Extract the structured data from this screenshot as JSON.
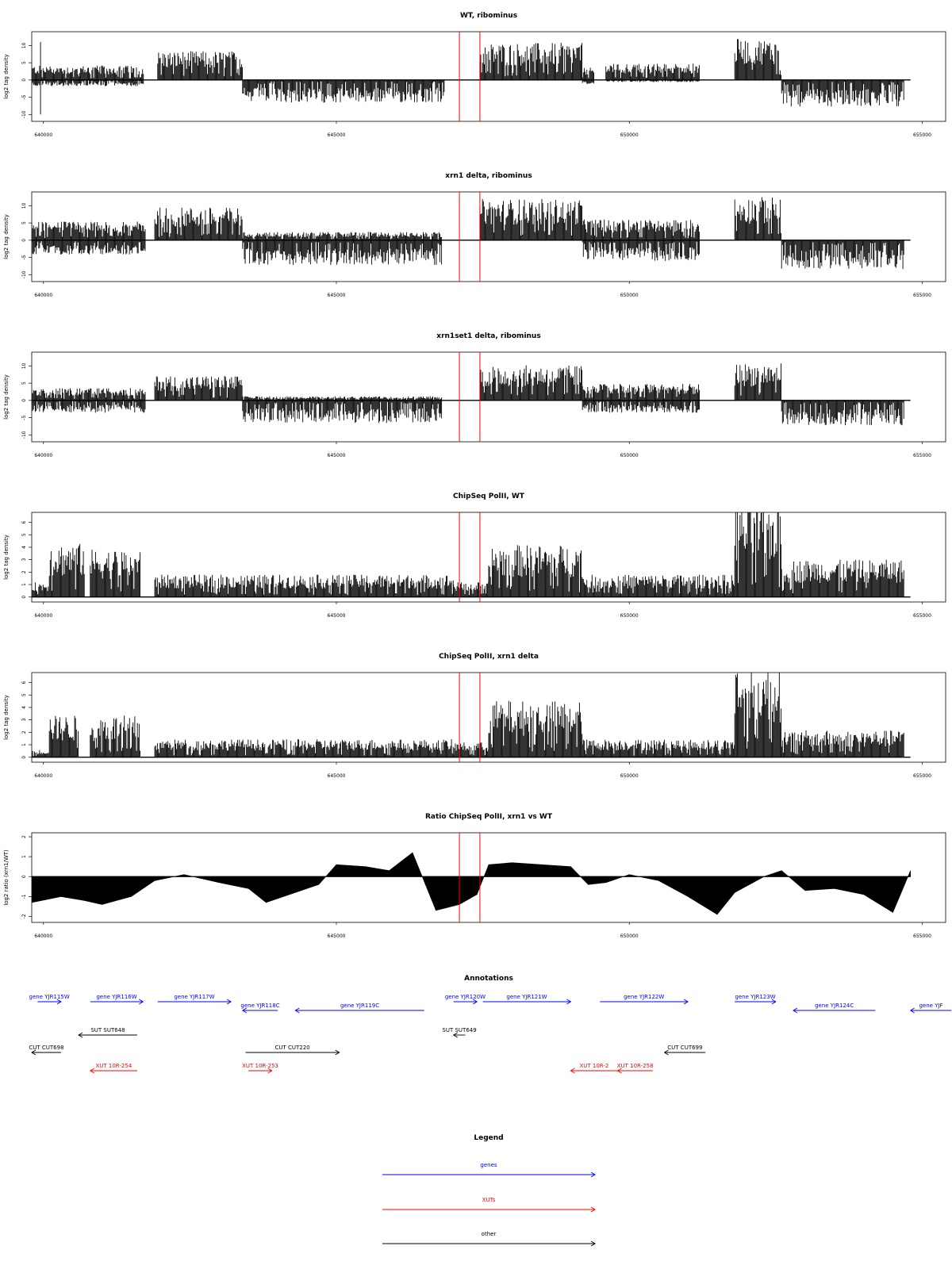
{
  "colors": {
    "gene": "#0000ff",
    "xut": "#ff0000",
    "other": "#000000",
    "marker": "#ff0000",
    "signal": "#000000"
  },
  "xaxis": {
    "ticks": [
      640000,
      645000,
      650000,
      655000
    ],
    "range": [
      639800,
      655400
    ]
  },
  "markers": [
    647100,
    647450
  ],
  "chart_data": [
    {
      "type": "bar",
      "title": "WT, ribominus",
      "ylabel": "log2 tag density",
      "ylim": [
        -12,
        14
      ],
      "yticks": [
        "10",
        "5",
        "0",
        "-5",
        "-10"
      ],
      "x_range": [
        639800,
        654800
      ],
      "blocks": [
        {
          "s": 639800,
          "e": 641720,
          "p": 3.5,
          "n": -1.5
        },
        {
          "s": 641950,
          "e": 643400,
          "p": 7,
          "n": 0
        },
        {
          "s": 643400,
          "e": 646850,
          "p": 0,
          "n": -5.5
        },
        {
          "s": 647450,
          "e": 649200,
          "p": 9,
          "n": 0
        },
        {
          "s": 649200,
          "e": 649400,
          "p": 3,
          "n": -1
        },
        {
          "s": 649600,
          "e": 651200,
          "p": 4,
          "n": -0.5
        },
        {
          "s": 651800,
          "e": 652600,
          "p": 10,
          "n": 0
        },
        {
          "s": 652600,
          "e": 654700,
          "p": 0,
          "n": -6.5
        }
      ],
      "spikes": [
        {
          "x": 639950,
          "top": 11,
          "bot": -10
        }
      ]
    },
    {
      "type": "bar",
      "title": "xrn1 delta, ribominus",
      "ylabel": "log2 tag density",
      "ylim": [
        -12,
        14
      ],
      "yticks": [
        "10",
        "5",
        "0",
        "-5",
        "-10"
      ],
      "x_range": [
        639800,
        654800
      ],
      "blocks": [
        {
          "s": 639800,
          "e": 641750,
          "p": 4.5,
          "n": -3.5
        },
        {
          "s": 641900,
          "e": 643400,
          "p": 8,
          "n": 0
        },
        {
          "s": 643400,
          "e": 646800,
          "p": 2,
          "n": -6
        },
        {
          "s": 647450,
          "e": 649200,
          "p": 10,
          "n": 0
        },
        {
          "s": 649200,
          "e": 651200,
          "p": 5,
          "n": -5
        },
        {
          "s": 651800,
          "e": 652600,
          "p": 10.5,
          "n": 0
        },
        {
          "s": 652600,
          "e": 654700,
          "p": 0,
          "n": -7
        }
      ],
      "spikes": []
    },
    {
      "type": "bar",
      "title": "xrn1set1 delta, ribominus",
      "ylabel": "log2 tag density",
      "ylim": [
        -12,
        14
      ],
      "yticks": [
        "10",
        "5",
        "0",
        "-5",
        "-10"
      ],
      "x_range": [
        639800,
        654800
      ],
      "blocks": [
        {
          "s": 639800,
          "e": 641750,
          "p": 3,
          "n": -3
        },
        {
          "s": 641900,
          "e": 643400,
          "p": 6,
          "n": 0
        },
        {
          "s": 643400,
          "e": 646800,
          "p": 1,
          "n": -5.5
        },
        {
          "s": 647450,
          "e": 649200,
          "p": 8.5,
          "n": 0
        },
        {
          "s": 649200,
          "e": 651200,
          "p": 4,
          "n": -3
        },
        {
          "s": 651800,
          "e": 652600,
          "p": 9,
          "n": 0
        },
        {
          "s": 652600,
          "e": 654700,
          "p": 0,
          "n": -6
        }
      ],
      "spikes": []
    },
    {
      "type": "bar",
      "title": "ChipSeq PolII, WT",
      "ylabel": "log2 tag density",
      "ylim": [
        -0.4,
        6.8
      ],
      "yticks": [
        "6",
        "5",
        "4",
        "3",
        "2",
        "1",
        "0"
      ],
      "x_range": [
        639800,
        654800
      ],
      "blocks": [
        {
          "s": 639800,
          "e": 640100,
          "p": 1,
          "n": 0
        },
        {
          "s": 640100,
          "e": 640700,
          "p": 3.6,
          "n": 0
        },
        {
          "s": 640800,
          "e": 641650,
          "p": 3.2,
          "n": 0
        },
        {
          "s": 641900,
          "e": 647000,
          "p": 1.5,
          "n": 0
        },
        {
          "s": 647000,
          "e": 647600,
          "p": 1,
          "n": 0
        },
        {
          "s": 647600,
          "e": 649200,
          "p": 3.5,
          "n": 0
        },
        {
          "s": 649200,
          "e": 651800,
          "p": 1.5,
          "n": 0
        },
        {
          "s": 651800,
          "e": 652600,
          "p": 6.2,
          "n": 0
        },
        {
          "s": 652600,
          "e": 654700,
          "p": 2.5,
          "n": 0
        }
      ],
      "spikes": []
    },
    {
      "type": "bar",
      "title": "ChipSeq PolII, xrn1 delta",
      "ylabel": "log2 tag density",
      "ylim": [
        -0.4,
        6.8
      ],
      "yticks": [
        "6",
        "5",
        "4",
        "3",
        "2",
        "1",
        "0"
      ],
      "x_range": [
        639800,
        654800
      ],
      "blocks": [
        {
          "s": 639800,
          "e": 640100,
          "p": 0.5,
          "n": 0
        },
        {
          "s": 640100,
          "e": 640600,
          "p": 2.8,
          "n": 0
        },
        {
          "s": 640800,
          "e": 641650,
          "p": 2.8,
          "n": 0
        },
        {
          "s": 641900,
          "e": 647000,
          "p": 1.2,
          "n": 0
        },
        {
          "s": 647000,
          "e": 647600,
          "p": 1,
          "n": 0
        },
        {
          "s": 647600,
          "e": 649200,
          "p": 3.8,
          "n": 0
        },
        {
          "s": 649200,
          "e": 651800,
          "p": 1.2,
          "n": 0
        },
        {
          "s": 651800,
          "e": 652600,
          "p": 6.2,
          "n": 0
        },
        {
          "s": 652600,
          "e": 654700,
          "p": 1.8,
          "n": 0
        }
      ],
      "spikes": []
    },
    {
      "type": "area",
      "title": "Ratio ChipSeq PolII, xrn1 vs WT",
      "ylabel": "log2 ratio (xrn1/WT)",
      "ylim": [
        -2.3,
        2.2
      ],
      "yticks": [
        "2",
        "1",
        "0",
        "-1",
        "-2"
      ],
      "x_range": [
        639800,
        654800
      ],
      "x": [
        639800,
        640300,
        640700,
        641000,
        641500,
        641900,
        642400,
        643000,
        643500,
        643800,
        644200,
        644700,
        645000,
        645500,
        645900,
        646300,
        646700,
        647100,
        647400,
        647600,
        648000,
        648500,
        649000,
        649300,
        649600,
        650000,
        650500,
        651000,
        651500,
        651800,
        652300,
        652600,
        653000,
        653500,
        654000,
        654500,
        654800
      ],
      "y": [
        -1.3,
        -1.0,
        -1.2,
        -1.4,
        -1.0,
        -0.2,
        0.1,
        -0.3,
        -0.6,
        -1.3,
        -0.9,
        -0.4,
        0.6,
        0.5,
        0.3,
        1.2,
        -1.7,
        -1.4,
        -0.9,
        0.6,
        0.7,
        0.6,
        0.5,
        -0.4,
        -0.3,
        0.1,
        -0.2,
        -1.0,
        -1.9,
        -0.8,
        0.0,
        0.3,
        -0.7,
        -0.6,
        -0.9,
        -1.8,
        0.3
      ]
    }
  ],
  "annotations": {
    "title": "Annotations",
    "items": [
      {
        "label": "gene YJR115W",
        "kind": "gene",
        "s": 639900,
        "e": 640300,
        "dir": 1,
        "row": 0
      },
      {
        "label": "gene YJR116W",
        "kind": "gene",
        "s": 640800,
        "e": 641700,
        "dir": 1,
        "row": 0
      },
      {
        "label": "gene YJR117W",
        "kind": "gene",
        "s": 641950,
        "e": 643200,
        "dir": 1,
        "row": 0
      },
      {
        "label": "gene YJR118C",
        "kind": "gene",
        "s": 643400,
        "e": 644000,
        "dir": -1,
        "row": 1
      },
      {
        "label": "gene YJR119C",
        "kind": "gene",
        "s": 644300,
        "e": 646500,
        "dir": -1,
        "row": 1
      },
      {
        "label": "gene YJR120W",
        "kind": "gene",
        "s": 647000,
        "e": 647400,
        "dir": 1,
        "row": 0
      },
      {
        "label": "gene YJR121W",
        "kind": "gene",
        "s": 647500,
        "e": 649000,
        "dir": 1,
        "row": 0
      },
      {
        "label": "gene YJR122W",
        "kind": "gene",
        "s": 649500,
        "e": 651000,
        "dir": 1,
        "row": 0
      },
      {
        "label": "gene YJR123W",
        "kind": "gene",
        "s": 651800,
        "e": 652500,
        "dir": 1,
        "row": 0
      },
      {
        "label": "gene YJR124C",
        "kind": "gene",
        "s": 652800,
        "e": 654200,
        "dir": -1,
        "row": 1
      },
      {
        "label": "gene YJF",
        "kind": "gene",
        "s": 654800,
        "e": 655500,
        "dir": -1,
        "row": 1
      },
      {
        "label": "SUT SUT648",
        "kind": "other",
        "s": 640600,
        "e": 641600,
        "dir": -1,
        "row": 2
      },
      {
        "label": "CUT CUT698",
        "kind": "other",
        "s": 639800,
        "e": 640300,
        "dir": -1,
        "row": 3
      },
      {
        "label": "CUT CUT220",
        "kind": "other",
        "s": 643450,
        "e": 645050,
        "dir": 1,
        "row": 3
      },
      {
        "label": "SUT SUT649",
        "kind": "other",
        "s": 647000,
        "e": 647200,
        "dir": -1,
        "row": 2
      },
      {
        "label": "CUT CUT699",
        "kind": "other",
        "s": 650600,
        "e": 651300,
        "dir": -1,
        "row": 3
      },
      {
        "label": "XUT 10R-254",
        "kind": "xut",
        "s": 640800,
        "e": 641600,
        "dir": -1,
        "row": 4
      },
      {
        "label": "XUT 10R-253",
        "kind": "xut",
        "s": 643500,
        "e": 643900,
        "dir": 1,
        "row": 4
      },
      {
        "label": "XUT 10R-2",
        "kind": "xut",
        "s": 649000,
        "e": 649800,
        "dir": -1,
        "row": 4
      },
      {
        "label": "XUT 10R-258",
        "kind": "xut",
        "s": 649800,
        "e": 650400,
        "dir": -1,
        "row": 4
      }
    ]
  },
  "legend": {
    "title": "Legend",
    "items": [
      {
        "label": "genes",
        "kind": "gene"
      },
      {
        "label": "XUTs",
        "kind": "xut"
      },
      {
        "label": "other",
        "kind": "other"
      }
    ]
  }
}
